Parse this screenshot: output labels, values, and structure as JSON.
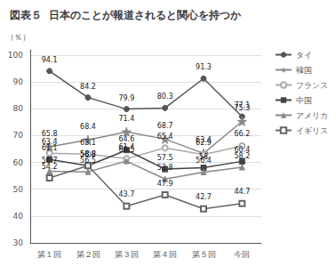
{
  "chart_data": {
    "type": "line",
    "title": "図表５  日本のことが報道されると関心を持つか",
    "ylabel": "（％）",
    "categories": [
      "第１回",
      "第２回",
      "第３回",
      "第４回",
      "第５回",
      "今回"
    ],
    "series": [
      {
        "name": "タイ",
        "color": "#555555",
        "marker": "circle",
        "values": [
          94.1,
          84.2,
          79.9,
          80.3,
          91.3,
          77.1
        ]
      },
      {
        "name": "韓国",
        "color": "#888888",
        "marker": "star",
        "values": [
          65.8,
          68.4,
          71.4,
          68.7,
          63.4,
          75.3
        ]
      },
      {
        "name": "フランス",
        "color": "#aaaaaa",
        "marker": "open_circle",
        "values": [
          63.4,
          63.1,
          61.4,
          65.4,
          62.9,
          66.2
        ]
      },
      {
        "name": "中国",
        "color": "#444444",
        "marker": "square",
        "values": [
          61.1,
          58.8,
          64.6,
          57.5,
          58.0,
          60.4
        ]
      },
      {
        "name": "アメリカ",
        "color": "#888888",
        "marker": "triangle",
        "values": [
          56.7,
          56.5,
          60.5,
          53.8,
          56.4,
          58.2
        ]
      },
      {
        "name": "イギリス",
        "color": "#666666",
        "marker": "open_square",
        "values": [
          54.2,
          58.8,
          43.7,
          47.9,
          42.7,
          44.7
        ]
      }
    ],
    "ylim": [
      30,
      102
    ],
    "yticks": [
      30,
      40,
      50,
      60,
      70,
      80,
      90,
      100
    ],
    "grid": true,
    "legend": "right",
    "data_labels": true
  }
}
